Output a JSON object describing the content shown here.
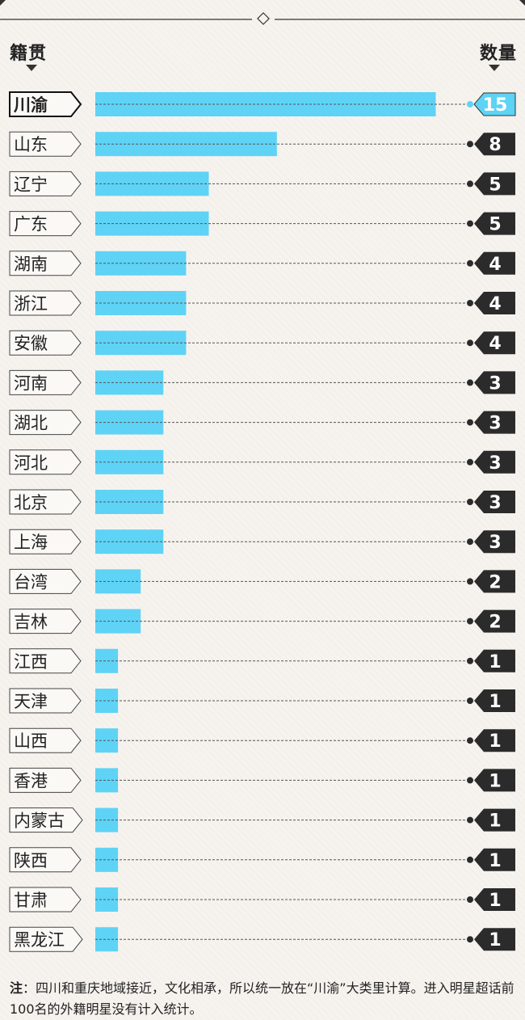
{
  "header": {
    "left_label": "籍贯",
    "right_label": "数量"
  },
  "chart_data": {
    "type": "bar",
    "orientation": "horizontal",
    "xlabel": "籍贯",
    "ylabel": "数量",
    "categories": [
      "川渝",
      "山东",
      "辽宁",
      "广东",
      "湖南",
      "浙江",
      "安徽",
      "河南",
      "湖北",
      "河北",
      "北京",
      "上海",
      "台湾",
      "吉林",
      "江西",
      "天津",
      "山西",
      "香港",
      "内蒙古",
      "陕西",
      "甘肃",
      "黑龙江"
    ],
    "values": [
      15,
      8,
      5,
      5,
      4,
      4,
      4,
      3,
      3,
      3,
      3,
      3,
      2,
      2,
      1,
      1,
      1,
      1,
      1,
      1,
      1,
      1
    ],
    "highlight_index": 0,
    "colors": {
      "bar": "#5fd3f5",
      "badge": "#2b2b2b",
      "badge_highlight": "#5fd3f5",
      "label_border": "#444"
    }
  },
  "note": {
    "prefix": "注",
    "text": "：四川和重庆地域接近，文化相承，所以统一放在“川渝”大类里计算。进入明星超话前100名的外籍明星没有计入统计。"
  }
}
